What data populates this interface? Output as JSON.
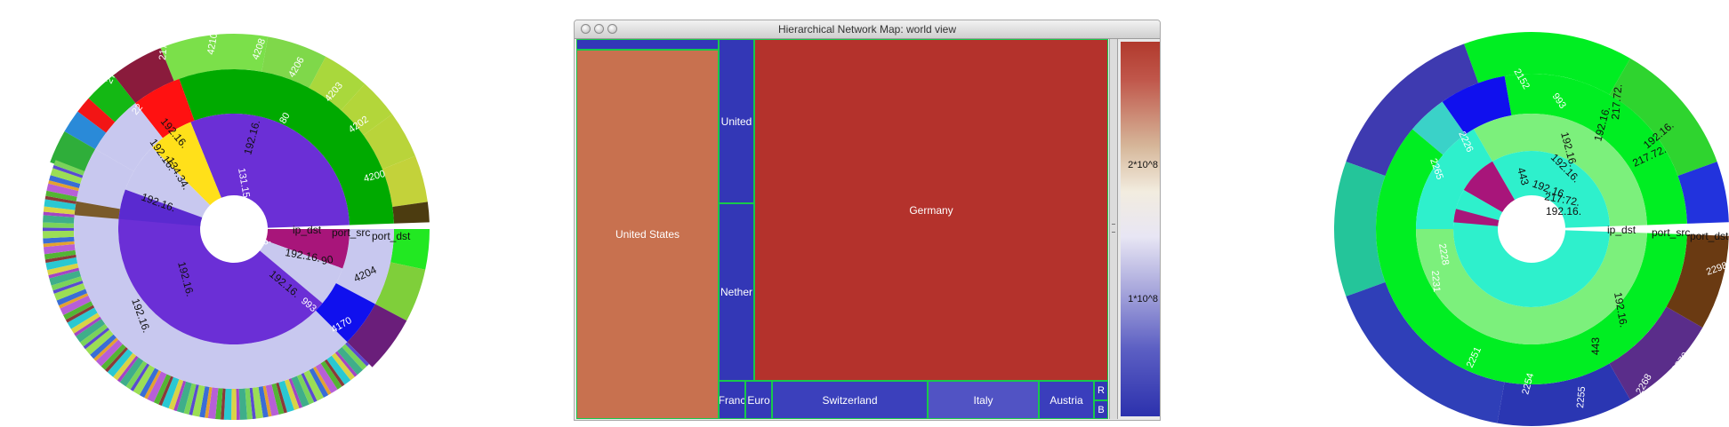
{
  "left_sunburst": {
    "ring_labels": [
      "ip_dst",
      "port_src",
      "port_dst"
    ],
    "inner_labels": [
      "131.15.",
      "192.16.",
      "192.16.",
      "192.16.",
      "192.16.",
      "192.16.",
      "134.34."
    ],
    "middle_labels": [
      "192.16.",
      "192.16.",
      "192.16.",
      "192.16.",
      "80",
      "993"
    ],
    "outer_labels": [
      "2172",
      "4210",
      "4208",
      "4206",
      "4203",
      "4202",
      "4200",
      "2781",
      "22",
      "4204",
      "4170",
      "90"
    ]
  },
  "map_window": {
    "title": "Hierarchical Network Map: world view",
    "countries": [
      "United States",
      "United",
      "Nether",
      "Germany",
      "Franc",
      "Euro",
      "Switzerland",
      "Italy",
      "Austria",
      "R",
      "B"
    ],
    "scale_ticks": [
      "2*10^8",
      "1*10^8"
    ],
    "colors": {
      "high": "#b13a2d",
      "mid": "#f2ecdf",
      "low": "#2c31ad",
      "border": "#18c94b"
    }
  },
  "right_sunburst": {
    "ring_labels": [
      "ip_dst",
      "port_src",
      "port_dst"
    ],
    "inner_labels": [
      "192.16.",
      "192.16.",
      "192.16.",
      "217.72.",
      "192.16.",
      "217.72.",
      "192.16.",
      "192.16."
    ],
    "middle_labels": [
      "217.72.",
      "192.16.",
      "443",
      "993",
      "443"
    ],
    "outer_labels": [
      "2152",
      "2228",
      "2231",
      "2265",
      "2226",
      "2251",
      "2254",
      "2255",
      "2268",
      "2270",
      "2298"
    ]
  }
}
